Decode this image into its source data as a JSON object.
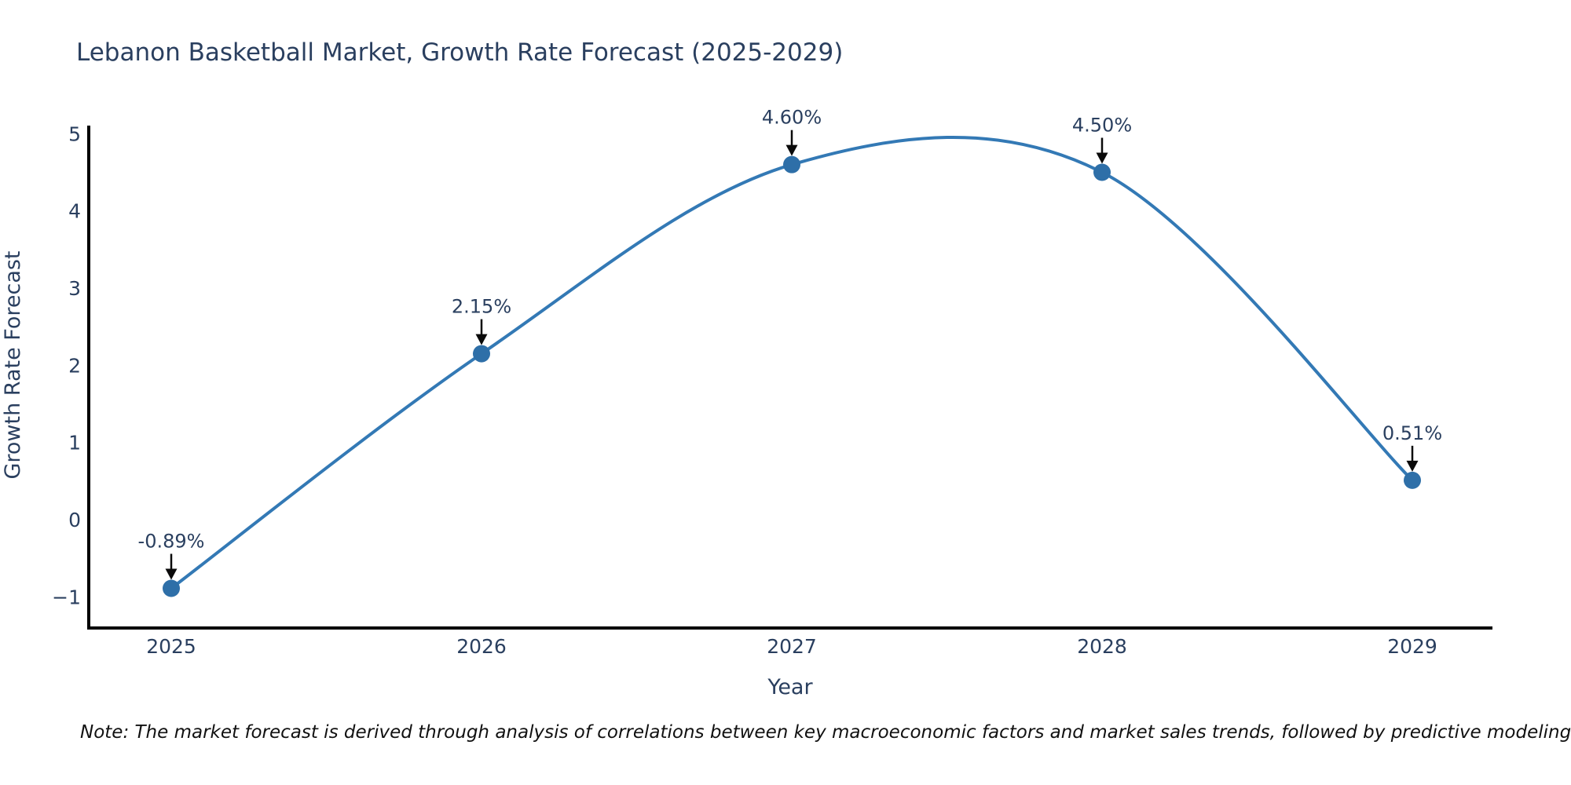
{
  "title": "Lebanon Basketball Market, Growth Rate Forecast (2025-2029)",
  "note": "Note: The market forecast is derived through analysis of correlations between key macroeconomic factors and market sales trends, followed by predictive modeling to project future sales",
  "chart_data": {
    "type": "line",
    "title": "Lebanon Basketball Market, Growth Rate Forecast (2025-2029)",
    "xlabel": "Year",
    "ylabel": "Growth Rate Forecast",
    "categories": [
      "2025",
      "2026",
      "2027",
      "2028",
      "2029"
    ],
    "values": [
      -0.89,
      2.15,
      4.6,
      4.5,
      0.51
    ],
    "point_labels": [
      "-0.89%",
      "2.15%",
      "4.60%",
      "4.50%",
      "0.51%"
    ],
    "yticks": [
      5,
      4,
      3,
      2,
      1,
      0,
      -1
    ],
    "ylim": [
      -1.42,
      5.1
    ],
    "grid": false,
    "legend": "none",
    "smoothed": true,
    "colors": {
      "line": "#3379b5",
      "marker": "#2e6fa8",
      "text": "#2a3f5f",
      "axis": "#000000",
      "arrow": "#0a0a0a",
      "background": "#ffffff"
    }
  }
}
